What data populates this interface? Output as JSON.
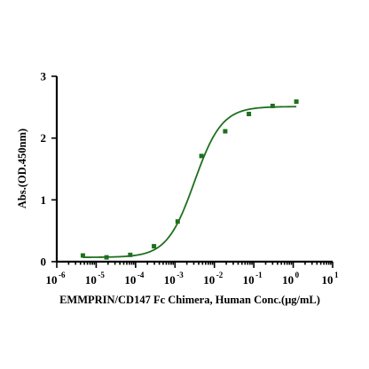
{
  "chart_data": {
    "type": "scatter",
    "title": "",
    "xlabel": "EMMPRIN/CD147 Fc Chimera, Human Conc.(μg/mL)",
    "ylabel": "Abs.(OD.450nm)",
    "x_scale": "log",
    "xlim": [
      1e-06,
      10
    ],
    "ylim": [
      0,
      3
    ],
    "x_ticks": [
      {
        "base": "10",
        "exp": "-6"
      },
      {
        "base": "10",
        "exp": "-5"
      },
      {
        "base": "10",
        "exp": "-4"
      },
      {
        "base": "10",
        "exp": "-3"
      },
      {
        "base": "10",
        "exp": "-2"
      },
      {
        "base": "10",
        "exp": "-1"
      },
      {
        "base": "10",
        "exp": "0"
      },
      {
        "base": "10",
        "exp": "1"
      }
    ],
    "y_ticks": [
      "0",
      "1",
      "2",
      "3"
    ],
    "grid": false,
    "legend": "none",
    "colors": {
      "series": "#1f6f1f",
      "axis": "#000000"
    },
    "series": [
      {
        "x": [
          4.6e-06,
          1.83e-05,
          7.32e-05,
          0.000293,
          0.00117,
          0.00469,
          0.0188,
          0.075,
          0.3,
          1.2
        ],
        "y": [
          0.1,
          0.07,
          0.11,
          0.25,
          0.65,
          1.71,
          2.11,
          2.39,
          2.52,
          2.59
        ]
      }
    ],
    "fit_curve": {
      "model": "4PL",
      "bottom": 0.07,
      "top": 2.51,
      "ec50": 0.0031,
      "hill": 1.25
    }
  }
}
